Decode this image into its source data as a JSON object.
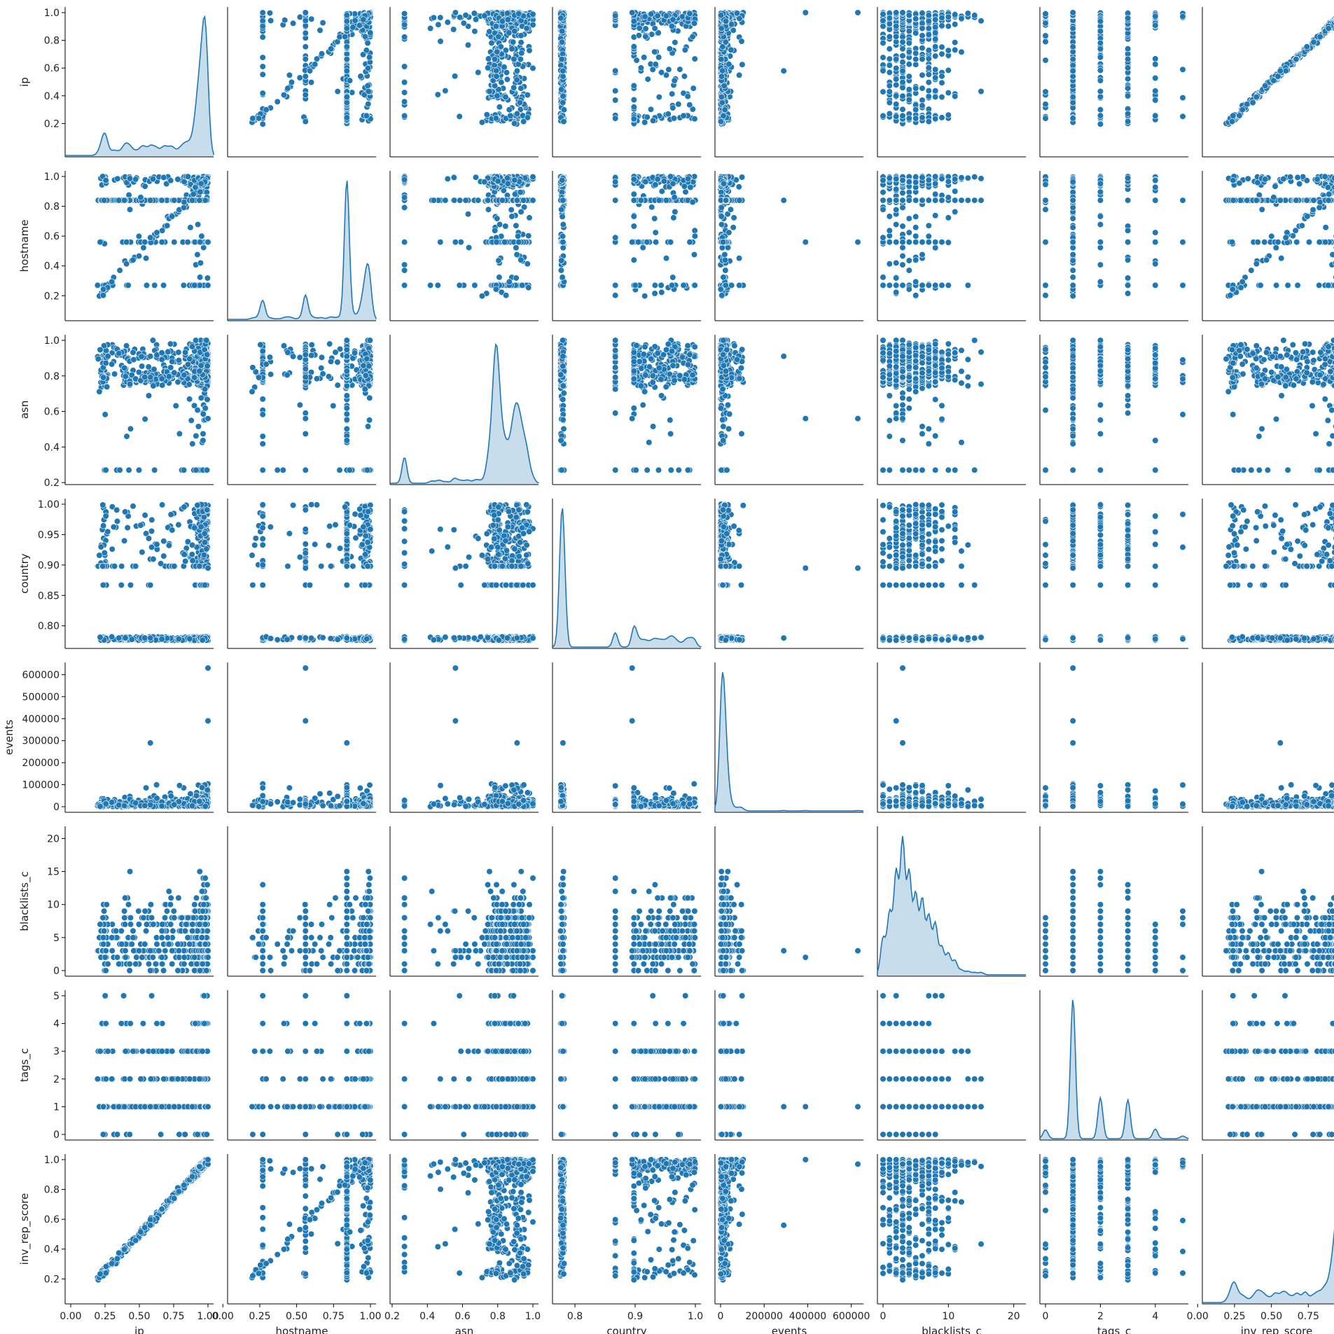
{
  "chart_data": {
    "type": "pairplot",
    "variables": [
      {
        "name": "ip",
        "label": "ip",
        "range": [
          0.0,
          1.0
        ],
        "ticks": [
          "0.00",
          "0.25",
          "0.50",
          "0.75",
          "1.00"
        ],
        "yticks": [
          "0.2",
          "0.4",
          "0.6",
          "0.8",
          "1.0"
        ]
      },
      {
        "name": "hostname",
        "label": "hostname",
        "range": [
          0.07,
          1.0
        ],
        "ticks": [
          "0.00",
          "0.25",
          "0.50",
          "0.75",
          "1.00"
        ],
        "yticks": [
          "0.2",
          "0.4",
          "0.6",
          "0.8",
          "1.0"
        ]
      },
      {
        "name": "asn",
        "label": "asn",
        "range": [
          0.22,
          1.0
        ],
        "ticks": [
          "0.2",
          "0.4",
          "0.6",
          "0.8",
          "1.0"
        ],
        "yticks": [
          "0.2",
          "0.4",
          "0.6",
          "0.8",
          "1.0"
        ]
      },
      {
        "name": "country",
        "label": "country",
        "range": [
          0.772,
          1.0
        ],
        "ticks": [
          "0.8",
          "0.9",
          "1.0"
        ],
        "yticks": [
          "0.80",
          "0.85",
          "0.90",
          "0.95",
          "1.00"
        ]
      },
      {
        "name": "events",
        "label": "events",
        "range": [
          0,
          630000
        ],
        "ticks": [
          "0",
          "200000",
          "400000",
          "600000"
        ],
        "yticks": [
          "0",
          "100000",
          "200000",
          "300000",
          "400000",
          "500000",
          "600000"
        ]
      },
      {
        "name": "blacklists_c",
        "label": "blacklists_c",
        "range": [
          0,
          21
        ],
        "ticks": [
          "0",
          "10",
          "20"
        ],
        "yticks": [
          "0",
          "5",
          "10",
          "15",
          "20"
        ]
      },
      {
        "name": "tags_c",
        "label": "tags_c",
        "range": [
          0,
          5
        ],
        "ticks": [
          "0",
          "2",
          "4"
        ],
        "yticks": [
          "0",
          "1",
          "2",
          "3",
          "4",
          "5"
        ]
      },
      {
        "name": "inv_rep_score",
        "label": "inv_rep_score",
        "range": [
          0.07,
          1.0
        ],
        "ticks": [
          "0.00",
          "0.25",
          "0.50",
          "0.75",
          "1.00"
        ],
        "yticks": [
          "0.2",
          "0.4",
          "0.6",
          "0.8",
          "1.0"
        ]
      }
    ],
    "diagonal": "kde",
    "off_diagonal": "scatter",
    "color": "#1f77b4"
  }
}
